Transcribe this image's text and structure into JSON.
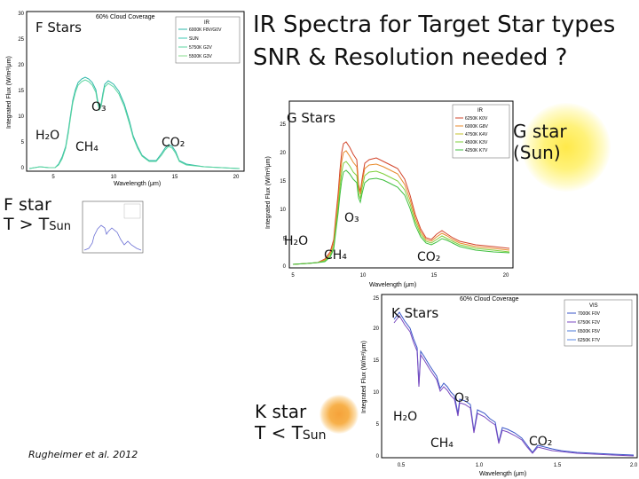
{
  "slide": {
    "title_line1": "IR Spectra for Target Star types",
    "title_line2": "SNR & Resolution needed ?",
    "citation": "Rugheimer et al. 2012"
  },
  "f_panel": {
    "label": "F Stars",
    "cloud": "60% Cloud Coverage",
    "ylabel": "Integrated Flux (W/m²/μm)",
    "xlabel": "Wavelength (μm)",
    "yticks": [
      "0",
      "5",
      "10",
      "15",
      "20",
      "25",
      "30"
    ],
    "xticks": [
      "5",
      "10",
      "15",
      "20"
    ],
    "legend_title": "IR",
    "legend": [
      "6000K F8V/G0V",
      "SUN",
      "5750K G2V",
      "5500K G3V"
    ],
    "molecules": {
      "o3": "O₃",
      "h2o": "H₂O",
      "ch4": "CH₄",
      "co2": "CO₂"
    }
  },
  "g_panel": {
    "label": "G Stars",
    "ylabel": "Integrated Flux (W/m²/μm)",
    "xlabel": "Wavelength (μm)",
    "yticks": [
      "0",
      "5",
      "10",
      "15",
      "20",
      "25"
    ],
    "xticks": [
      "5",
      "10",
      "15",
      "20"
    ],
    "legend_title": "IR",
    "legend": [
      "6250K K0V",
      "6000K G8V",
      "4750K K4V",
      "4500K K3V",
      "4250K K7V"
    ],
    "star_label_line1": "G star",
    "star_label_line2": "(Sun)",
    "molecules": {
      "o3": "O₃",
      "h2o": "H₂O",
      "ch4": "CH₄",
      "co2": "CO₂"
    }
  },
  "k_panel": {
    "label": "K Stars",
    "cloud": "60% Cloud Coverage",
    "ylabel": "Integrated Flux (W/m²/μm)",
    "xlabel": "Wavelength (μm)",
    "yticks": [
      "0",
      "5",
      "10",
      "15",
      "20",
      "25"
    ],
    "xticks": [
      "0.5",
      "1.0",
      "1.5",
      "2.0"
    ],
    "legend_title": "VIS",
    "legend": [
      "7000K F0V",
      "6750K F2V",
      "6500K F5V",
      "6250K F7V"
    ],
    "star_label_line1": "K star",
    "star_label_line2": "T < T",
    "star_label_sub": "Sun",
    "molecules": {
      "o3": "O₃",
      "h2o": "H₂O",
      "ch4": "CH₄",
      "co2": "CO₂"
    }
  },
  "f_star": {
    "label_line1": "F star",
    "label_line2": "T > T",
    "label_sub": "Sun"
  },
  "colors": {
    "f_series": "#2bb7a8",
    "g_series_green": "#3fbf3f",
    "g_series_red": "#d2442a",
    "k_series": "#3a56c8"
  }
}
